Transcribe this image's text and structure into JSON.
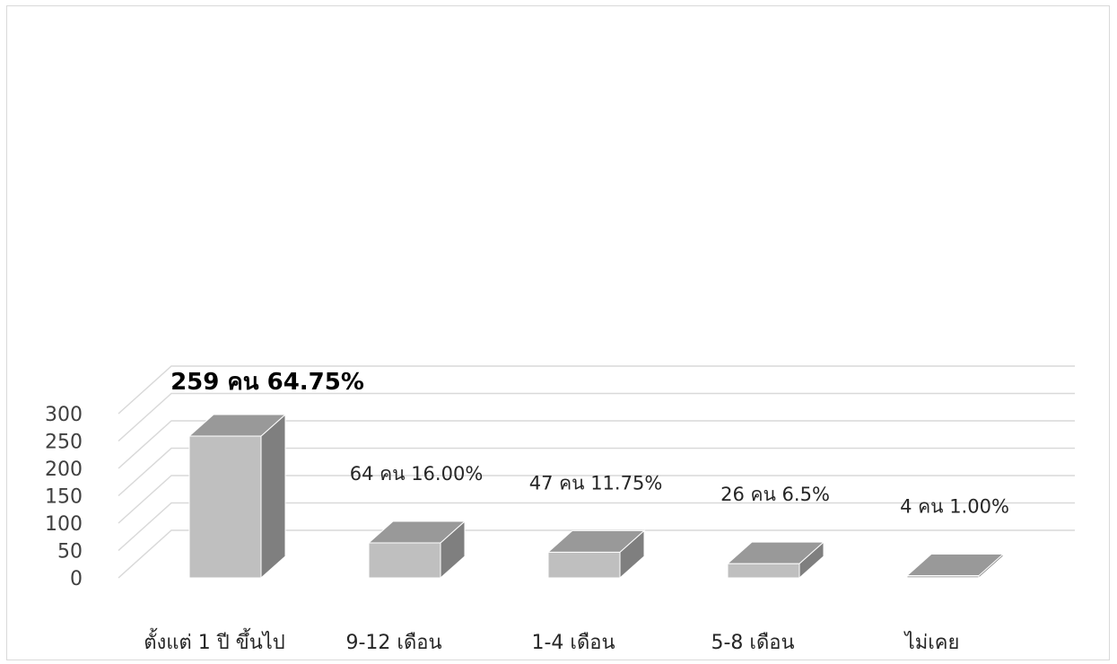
{
  "chart_data": {
    "type": "bar",
    "style": "3d-column",
    "title": "",
    "xlabel": "",
    "ylabel": "",
    "categories": [
      "ตั้งแต่ 1 ปี ขึ้นไป",
      "9-12 เดือน",
      "1-4 เดือน",
      "5-8 เดือน",
      "ไม่เคย"
    ],
    "values": [
      259,
      64,
      47,
      26,
      4
    ],
    "data_labels": [
      "259 คน 64.75%",
      "64 คน 16.00%",
      "47 คน 11.75%",
      "26 คน 6.5%",
      "4 คน 1.00%"
    ],
    "highlight_label_index": 0,
    "ylim": [
      0,
      300
    ],
    "yticks": [
      0,
      50,
      100,
      150,
      200,
      250,
      300
    ],
    "grid": true,
    "legend": "none",
    "colors": {
      "front": "#bfbfbf",
      "side": "#7f7f7f",
      "top": "#999999",
      "grid": "#d9d9d9",
      "outline": "#ffffff"
    }
  }
}
